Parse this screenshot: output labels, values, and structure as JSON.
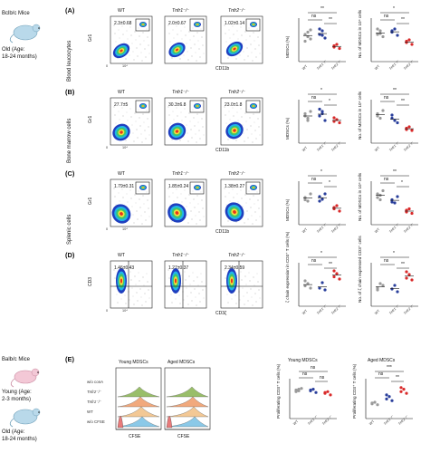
{
  "mice_top": {
    "strain": "Bclb/c Mice",
    "age_line1": "Old (Age:",
    "age_line2": "18-24 months)"
  },
  "mice_bottom": {
    "strain": "Balb/c Mice",
    "young1": "Young (Age:",
    "young2": "2-3 months)",
    "old1": "Old (Age:",
    "old2": "18-24 months)"
  },
  "genotypes": {
    "wt": "WT",
    "tnfr1": "Tnfr1⁻/⁻",
    "tnfr2": "Tnfr2⁻/⁻"
  },
  "panels": [
    {
      "letter": "(A)",
      "tissue": "Blood leucocytes",
      "yaxis": "Gr1",
      "xaxis": "CD11b",
      "pcts": [
        "2.3±0.68",
        "2.0±0.67",
        "1.02±0.14"
      ],
      "dot1_ylabel": "MDSCs (%)",
      "dot2_ylabel": "No. of MDSCs in 10⁴ cells",
      "sig1": [
        "**",
        "ns",
        "**"
      ],
      "sig2": [
        "*",
        "ns",
        "**"
      ]
    },
    {
      "letter": "(B)",
      "tissue": "Bone marrow cells",
      "yaxis": "Gr1",
      "xaxis": "CD11b",
      "pcts": [
        "27.7±5",
        "30.3±6.8",
        "23.0±1.8"
      ],
      "dot1_ylabel": "MDSCs (%)",
      "dot2_ylabel": "No. of MDSCs in 10⁴ cells",
      "sig1": [
        "*",
        "ns",
        "*"
      ],
      "sig2": [
        "**",
        "ns",
        "**"
      ]
    },
    {
      "letter": "(C)",
      "tissue": "Splenic cells",
      "yaxis": "Gr1",
      "xaxis": "CD11b",
      "pcts": [
        "1.79±0.31",
        "1.85±0.24",
        "1.38±0.27"
      ],
      "dot1_ylabel": "MDSCs (%)",
      "dot2_ylabel": "No. of MDSCs in 10⁴ cells",
      "sig1": [
        "*",
        "ns",
        "*"
      ],
      "sig2": [
        "**",
        "ns",
        "*"
      ]
    },
    {
      "letter": "(D)",
      "tissue": "",
      "yaxis": "CD3",
      "xaxis": "CD3ζ",
      "pcts": [
        "1.46±0.43",
        "1.27±0.37",
        "2.34±0.59"
      ],
      "dot1_ylabel": "ζ chain expression in CD3⁺ T cells (%)",
      "dot2_ylabel": "No. of ζ chain expressed CD3⁺ cells",
      "sig1": [
        "*",
        "ns",
        "**"
      ],
      "sig2": [
        "*",
        "ns",
        "**"
      ]
    }
  ],
  "ticks": {
    "t0": "0",
    "t3": "10³",
    "t4": "10⁴",
    "t5": "10⁵"
  },
  "panel_e": {
    "letter": "(E)",
    "young_title": "Young MDSCs",
    "aged_title": "Aged MDSCs",
    "rows": [
      "w/o conA",
      "Tnfr2⁻/⁻",
      "Tnfr1⁻/⁻",
      "WT",
      "w/o CFSE"
    ],
    "xaxis": "CFSE",
    "dot_ylabel": "Proliferating CD3⁺ T cells (%)",
    "young_sig": [
      "ns",
      "ns",
      "ns"
    ],
    "aged_sig": [
      "***",
      "ns",
      "**"
    ]
  },
  "colors": {
    "wt": "#9a9a9a",
    "tnfr1": "#2a3f9c",
    "tnfr2": "#d92a2a",
    "mouse_top": "#b9d9ea",
    "mouse_young": "#f3c8d6"
  }
}
